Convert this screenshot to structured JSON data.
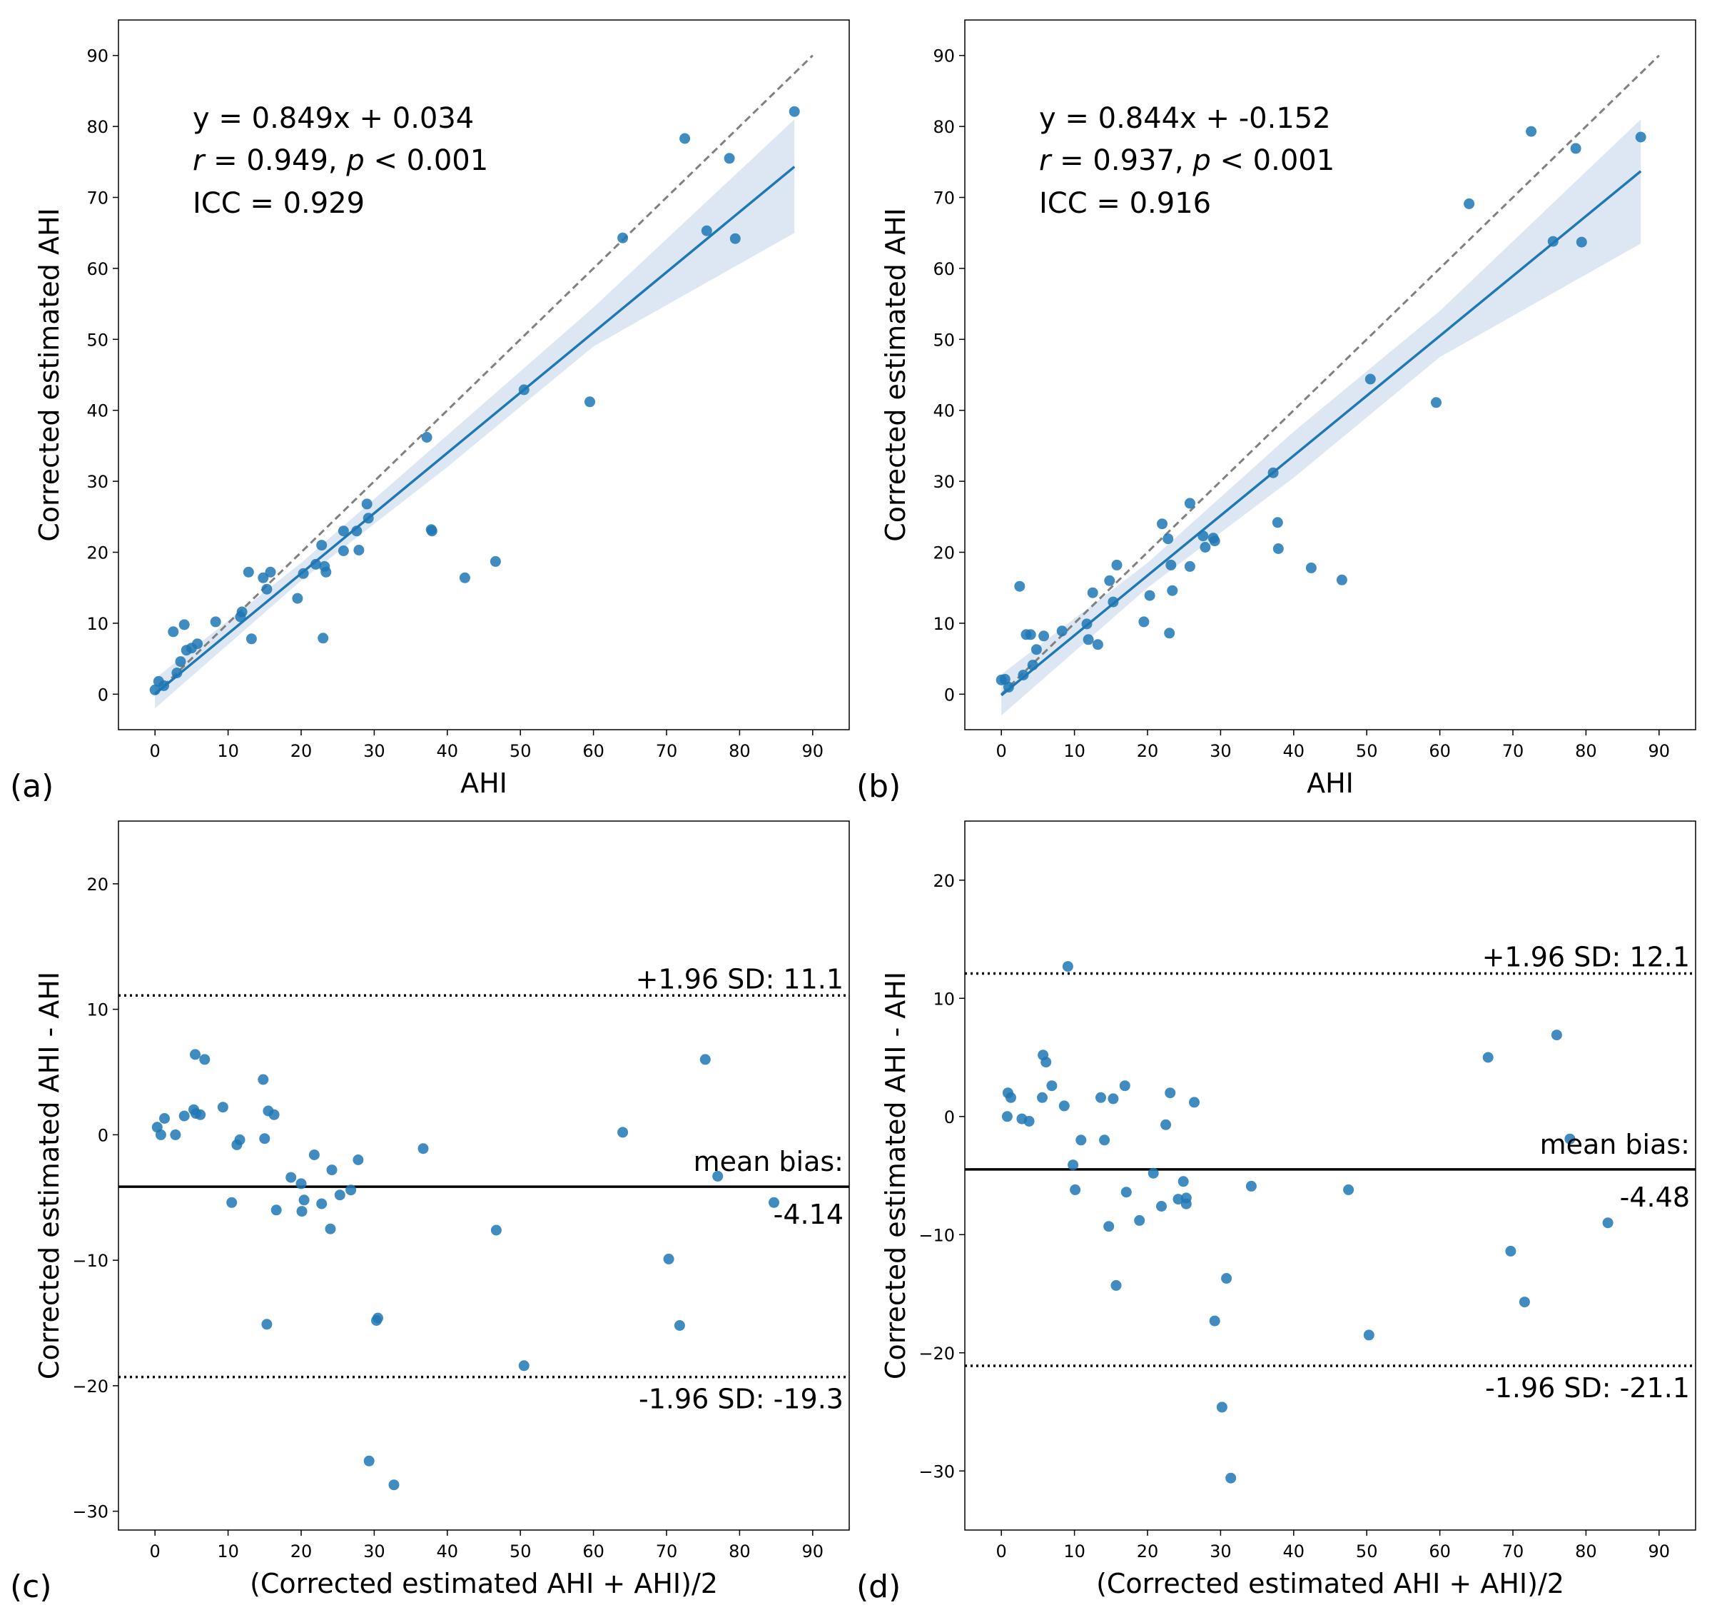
{
  "figure": {
    "background": "#ffffff"
  },
  "colors": {
    "point": "#1f77b4",
    "line": "#1f77b4",
    "ci_band": "#a7c4e2",
    "identity": "#808080",
    "frame": "#000000"
  },
  "chart_data": [
    {
      "id": "a",
      "panel_letter": "(a)",
      "type": "scatter",
      "subtype": "regression",
      "xlabel": "AHI",
      "ylabel": "Corrected estimated AHI",
      "xlim": [
        -5,
        95
      ],
      "ylim": [
        -5,
        95
      ],
      "xticks": [
        0,
        10,
        20,
        30,
        40,
        50,
        60,
        70,
        80,
        90
      ],
      "yticks": [
        0,
        10,
        20,
        30,
        40,
        50,
        60,
        70,
        80,
        90
      ],
      "annotations": {
        "equation": "y = 0.849x + 0.034",
        "r_symbol": "r",
        "r_text": " = 0.949, ",
        "p_symbol": "p",
        "p_text": " < 0.001",
        "icc": "ICC = 0.929"
      },
      "identity_line": {
        "from": 0,
        "to": 90
      },
      "regression": {
        "slope": 0.849,
        "intercept": 0.034,
        "x_range": [
          0,
          87.5
        ]
      },
      "ci_band": {
        "x": [
          0,
          20,
          40,
          60,
          87.5
        ],
        "lower": [
          -2,
          16,
          32,
          49,
          65
        ],
        "upper": [
          2.2,
          18.5,
          36.5,
          54.5,
          81
        ]
      },
      "points": [
        [
          0,
          0.6
        ],
        [
          0.5,
          1.8
        ],
        [
          1.2,
          1.2
        ],
        [
          2.5,
          8.8
        ],
        [
          3,
          3
        ],
        [
          3.5,
          4.6
        ],
        [
          4,
          9.8
        ],
        [
          4.3,
          6.2
        ],
        [
          5,
          6.5
        ],
        [
          5.8,
          7.1
        ],
        [
          8.3,
          10.2
        ],
        [
          11.7,
          10.9
        ],
        [
          11.9,
          11.6
        ],
        [
          12.8,
          17.2
        ],
        [
          13.2,
          7.8
        ],
        [
          14.8,
          16.4
        ],
        [
          15.3,
          14.8
        ],
        [
          15.8,
          17.2
        ],
        [
          19.5,
          13.5
        ],
        [
          20.3,
          17
        ],
        [
          22,
          18.3
        ],
        [
          22.8,
          21
        ],
        [
          23,
          7.9
        ],
        [
          23.2,
          18
        ],
        [
          23.4,
          17.2
        ],
        [
          25.8,
          23
        ],
        [
          25.8,
          20.2
        ],
        [
          27.6,
          23
        ],
        [
          27.9,
          20.3
        ],
        [
          29,
          26.8
        ],
        [
          29.2,
          24.8
        ],
        [
          37.2,
          36.2
        ],
        [
          37.8,
          23.2
        ],
        [
          37.9,
          23
        ],
        [
          42.4,
          16.4
        ],
        [
          46.6,
          18.7
        ],
        [
          50.5,
          42.9
        ],
        [
          59.5,
          41.2
        ],
        [
          64,
          64.3
        ],
        [
          72.5,
          78.3
        ],
        [
          75.5,
          65.3
        ],
        [
          78.6,
          75.5
        ],
        [
          79.4,
          64.2
        ],
        [
          87.5,
          82.1
        ]
      ]
    },
    {
      "id": "b",
      "panel_letter": "(b)",
      "type": "scatter",
      "subtype": "regression",
      "xlabel": "AHI",
      "ylabel": "Corrected estimated AHI",
      "xlim": [
        -5,
        95
      ],
      "ylim": [
        -5,
        95
      ],
      "xticks": [
        0,
        10,
        20,
        30,
        40,
        50,
        60,
        70,
        80,
        90
      ],
      "yticks": [
        0,
        10,
        20,
        30,
        40,
        50,
        60,
        70,
        80,
        90
      ],
      "annotations": {
        "equation": "y = 0.844x + -0.152",
        "r_symbol": "r",
        "r_text": " = 0.937, ",
        "p_symbol": "p",
        "p_text": " < 0.001",
        "icc": "ICC = 0.916"
      },
      "identity_line": {
        "from": 0,
        "to": 90
      },
      "regression": {
        "slope": 0.844,
        "intercept": -0.152,
        "x_range": [
          0,
          87.5
        ]
      },
      "ci_band": {
        "x": [
          0,
          20,
          40,
          60,
          87.5
        ],
        "lower": [
          -3,
          15,
          30.5,
          47.5,
          63.5
        ],
        "upper": [
          2.8,
          18.5,
          37,
          54,
          81
        ]
      },
      "points": [
        [
          0,
          2
        ],
        [
          0.5,
          2.1
        ],
        [
          1,
          1
        ],
        [
          2.5,
          15.2
        ],
        [
          3,
          2.7
        ],
        [
          3.4,
          8.4
        ],
        [
          4,
          8.4
        ],
        [
          4.3,
          4.1
        ],
        [
          4.8,
          6.3
        ],
        [
          5.8,
          8.2
        ],
        [
          8.3,
          8.9
        ],
        [
          11.7,
          9.9
        ],
        [
          11.9,
          7.7
        ],
        [
          12.5,
          14.3
        ],
        [
          13.2,
          7
        ],
        [
          14.8,
          16
        ],
        [
          15.3,
          13
        ],
        [
          15.8,
          18.2
        ],
        [
          19.5,
          10.2
        ],
        [
          20.3,
          13.9
        ],
        [
          22,
          24
        ],
        [
          22.8,
          21.9
        ],
        [
          23,
          8.6
        ],
        [
          23.2,
          18.2
        ],
        [
          23.4,
          14.6
        ],
        [
          25.8,
          26.9
        ],
        [
          25.8,
          18
        ],
        [
          27.6,
          22.3
        ],
        [
          27.9,
          20.7
        ],
        [
          29,
          22
        ],
        [
          29.2,
          21.6
        ],
        [
          37.2,
          31.2
        ],
        [
          37.8,
          24.2
        ],
        [
          37.9,
          20.5
        ],
        [
          42.4,
          17.8
        ],
        [
          46.6,
          16.1
        ],
        [
          50.5,
          44.4
        ],
        [
          59.5,
          41.1
        ],
        [
          64,
          69.1
        ],
        [
          72.5,
          79.3
        ],
        [
          75.5,
          63.8
        ],
        [
          78.6,
          76.9
        ],
        [
          79.4,
          63.7
        ],
        [
          87.5,
          78.5
        ]
      ]
    },
    {
      "id": "c",
      "panel_letter": "(c)",
      "type": "scatter",
      "subtype": "bland-altman",
      "xlabel": "(Corrected estimated AHI + AHI)/2",
      "ylabel": "Corrected estimated AHI - AHI",
      "xlim": [
        -5,
        95
      ],
      "ylim": [
        -31.5,
        25
      ],
      "xticks": [
        0,
        10,
        20,
        30,
        40,
        50,
        60,
        70,
        80,
        90
      ],
      "yticks": [
        -30,
        -20,
        -10,
        0,
        10,
        20
      ],
      "upper_loa": {
        "value": 11.1,
        "label": "+1.96 SD: 11.1"
      },
      "lower_loa": {
        "value": -19.3,
        "label": "-1.96 SD: -19.3"
      },
      "mean_bias": {
        "value": -4.14,
        "label": "mean bias:",
        "value_label": "-4.14"
      },
      "points": [
        [
          0.3,
          0.6
        ],
        [
          0.8,
          0
        ],
        [
          1.3,
          1.3
        ],
        [
          2.8,
          0
        ],
        [
          4,
          1.5
        ],
        [
          5.3,
          2
        ],
        [
          5.5,
          6.4
        ],
        [
          5.6,
          1.7
        ],
        [
          6.2,
          1.6
        ],
        [
          6.8,
          6
        ],
        [
          9.3,
          2.2
        ],
        [
          10.5,
          -5.4
        ],
        [
          11.2,
          -0.8
        ],
        [
          11.6,
          -0.4
        ],
        [
          14.8,
          4.4
        ],
        [
          15,
          -0.3
        ],
        [
          15.3,
          -15.1
        ],
        [
          15.5,
          1.9
        ],
        [
          16.3,
          1.6
        ],
        [
          16.6,
          -6
        ],
        [
          18.6,
          -3.4
        ],
        [
          20,
          -3.9
        ],
        [
          20.1,
          -6.1
        ],
        [
          20.4,
          -5.2
        ],
        [
          21.8,
          -1.6
        ],
        [
          22.8,
          -5.5
        ],
        [
          24,
          -7.5
        ],
        [
          24.2,
          -2.8
        ],
        [
          25.3,
          -4.8
        ],
        [
          26.8,
          -4.4
        ],
        [
          27.8,
          -2
        ],
        [
          29.3,
          -26
        ],
        [
          30.3,
          -14.8
        ],
        [
          30.5,
          -14.6
        ],
        [
          32.7,
          -27.9
        ],
        [
          36.7,
          -1.1
        ],
        [
          46.7,
          -7.6
        ],
        [
          50.5,
          -18.4
        ],
        [
          64,
          0.2
        ],
        [
          70.3,
          -9.9
        ],
        [
          71.8,
          -15.2
        ],
        [
          75.3,
          6
        ],
        [
          77,
          -3.3
        ],
        [
          84.7,
          -5.4
        ]
      ]
    },
    {
      "id": "d",
      "panel_letter": "(d)",
      "type": "scatter",
      "subtype": "bland-altman",
      "xlabel": "(Corrected estimated AHI + AHI)/2",
      "ylabel": "Corrected estimated AHI - AHI",
      "xlim": [
        -5,
        95
      ],
      "ylim": [
        -35,
        25
      ],
      "xticks": [
        0,
        10,
        20,
        30,
        40,
        50,
        60,
        70,
        80,
        90
      ],
      "yticks": [
        -30,
        -20,
        -10,
        0,
        10,
        20
      ],
      "upper_loa": {
        "value": 12.1,
        "label": "+1.96 SD: 12.1"
      },
      "lower_loa": {
        "value": -21.1,
        "label": "-1.96 SD: -21.1"
      },
      "mean_bias": {
        "value": -4.48,
        "label": "mean bias:",
        "value_label": "-4.48"
      },
      "points": [
        [
          0.8,
          0
        ],
        [
          0.9,
          2
        ],
        [
          1.3,
          1.6
        ],
        [
          2.8,
          -0.2
        ],
        [
          3.8,
          -0.4
        ],
        [
          5.6,
          1.6
        ],
        [
          5.7,
          5.2
        ],
        [
          6.1,
          4.6
        ],
        [
          6.9,
          2.6
        ],
        [
          8.6,
          0.9
        ],
        [
          9.1,
          12.7
        ],
        [
          9.8,
          -4.1
        ],
        [
          10.1,
          -6.2
        ],
        [
          10.9,
          -2
        ],
        [
          13.6,
          1.6
        ],
        [
          14.1,
          -2
        ],
        [
          14.7,
          -9.3
        ],
        [
          15.3,
          1.5
        ],
        [
          15.7,
          -14.3
        ],
        [
          16.9,
          2.6
        ],
        [
          17.1,
          -6.4
        ],
        [
          18.9,
          -8.8
        ],
        [
          20.8,
          -4.8
        ],
        [
          21.9,
          -7.6
        ],
        [
          22.5,
          -0.7
        ],
        [
          23.1,
          2
        ],
        [
          24.2,
          -7
        ],
        [
          24.9,
          -5.5
        ],
        [
          25.3,
          -7.4
        ],
        [
          25.3,
          -6.9
        ],
        [
          26.4,
          1.2
        ],
        [
          29.2,
          -17.3
        ],
        [
          30.2,
          -24.6
        ],
        [
          30.8,
          -13.7
        ],
        [
          31.4,
          -30.6
        ],
        [
          34.2,
          -5.9
        ],
        [
          47.5,
          -6.2
        ],
        [
          50.3,
          -18.5
        ],
        [
          66.6,
          5
        ],
        [
          69.7,
          -11.4
        ],
        [
          71.6,
          -15.7
        ],
        [
          76,
          6.9
        ],
        [
          77.8,
          -1.9
        ],
        [
          83,
          -9
        ]
      ]
    }
  ]
}
